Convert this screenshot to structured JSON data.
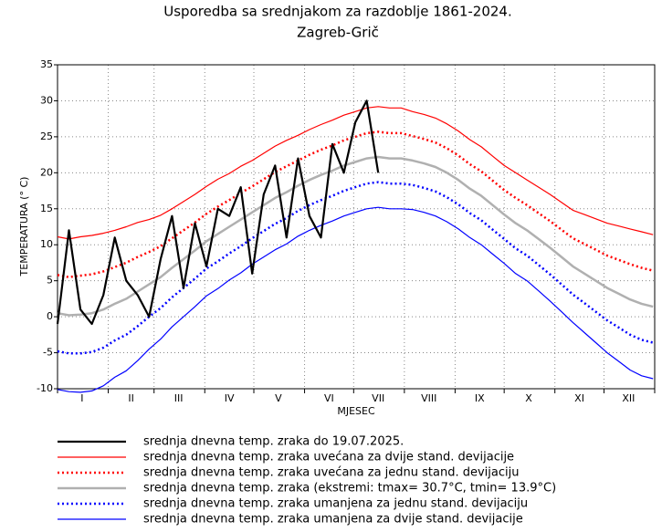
{
  "chart_data": {
    "type": "line",
    "title": "Usporedba sa srednjakom za razdoblje 1861-2024.",
    "subtitle": "Zagreb-Grič",
    "xlabel": "MJESEC",
    "ylabel": "TEMPERATURA (° C)",
    "xlim": [
      1,
      366
    ],
    "ylim": [
      -10,
      35
    ],
    "yticks": [
      -10,
      -5,
      0,
      5,
      10,
      15,
      20,
      25,
      30,
      35
    ],
    "xticks": [
      {
        "value": 16,
        "label": "I"
      },
      {
        "value": 46,
        "label": "II"
      },
      {
        "value": 75,
        "label": "III"
      },
      {
        "value": 106,
        "label": "IV"
      },
      {
        "value": 136,
        "label": "V"
      },
      {
        "value": 167,
        "label": "VI"
      },
      {
        "value": 197,
        "label": "VII"
      },
      {
        "value": 228,
        "label": "VIII"
      },
      {
        "value": 259,
        "label": "IX"
      },
      {
        "value": 289,
        "label": "X"
      },
      {
        "value": 320,
        "label": "XI"
      },
      {
        "value": 350,
        "label": "XII"
      }
    ],
    "x_grid": [
      1,
      32,
      60,
      91,
      121,
      152,
      182,
      213,
      244,
      274,
      305,
      335,
      366
    ],
    "grid": true,
    "x": [
      1,
      8,
      15,
      22,
      29,
      36,
      43,
      50,
      57,
      64,
      71,
      78,
      85,
      92,
      99,
      106,
      113,
      120,
      127,
      134,
      141,
      148,
      155,
      162,
      169,
      176,
      183,
      190,
      197,
      204,
      211,
      218,
      225,
      232,
      239,
      246,
      253,
      260,
      267,
      274,
      281,
      288,
      295,
      302,
      309,
      316,
      323,
      330,
      337,
      344,
      351,
      358,
      365
    ],
    "series": [
      {
        "name": "srednja dnevna temp. zraka do 19.07.2025.",
        "color": "#000000",
        "linestyle": "solid",
        "linewidth": 2.2,
        "values": [
          -1,
          12,
          1,
          -1,
          3,
          11,
          5,
          3,
          0,
          8,
          14,
          4,
          13,
          7,
          15,
          14,
          18,
          6,
          17,
          21,
          11,
          22,
          14,
          11,
          24,
          20,
          27,
          30,
          20,
          null,
          null,
          null,
          null,
          null,
          null,
          null,
          null,
          null,
          null,
          null,
          null,
          null,
          null,
          null,
          null,
          null,
          null,
          null,
          null,
          null,
          null,
          null,
          null
        ]
      },
      {
        "name": "srednja dnevna temp. zraka uvećana za dvije stand. devijacije",
        "color": "#ff0000",
        "linestyle": "solid",
        "linewidth": 1.2,
        "values": [
          11.1,
          10.8,
          11.1,
          11.3,
          11.6,
          12.0,
          12.5,
          13.1,
          13.5,
          14.1,
          15.0,
          16.0,
          17.0,
          18.1,
          19.1,
          19.9,
          20.9,
          21.7,
          22.7,
          23.7,
          24.5,
          25.2,
          26.0,
          26.7,
          27.3,
          28.0,
          28.5,
          29.0,
          29.2,
          29.0,
          29.0,
          28.5,
          28.1,
          27.6,
          26.8,
          25.8,
          24.6,
          23.6,
          22.3,
          21.0,
          20.0,
          19.0,
          18.0,
          17.0,
          15.9,
          14.8,
          14.2,
          13.6,
          13.0,
          12.6,
          12.2,
          11.8,
          11.4
        ]
      },
      {
        "name": "srednja dnevna temp. zraka uvećana za jednu stand. devijaciju",
        "color": "#ff0000",
        "linestyle": "dotted",
        "linewidth": 2.5,
        "values": [
          5.8,
          5.5,
          5.7,
          5.9,
          6.3,
          6.9,
          7.5,
          8.3,
          9.0,
          9.8,
          10.9,
          12.0,
          13.1,
          14.3,
          15.3,
          16.2,
          17.2,
          18.1,
          19.1,
          20.1,
          20.9,
          21.7,
          22.5,
          23.2,
          23.8,
          24.5,
          25.0,
          25.5,
          25.7,
          25.5,
          25.5,
          25.1,
          24.7,
          24.2,
          23.4,
          22.4,
          21.2,
          20.2,
          18.9,
          17.6,
          16.5,
          15.5,
          14.4,
          13.3,
          12.1,
          10.9,
          10.1,
          9.3,
          8.5,
          7.9,
          7.3,
          6.8,
          6.4
        ]
      },
      {
        "name": "srednja dnevna temp. zraka (ekstremi: tmax= 30.7°C, tmin= 13.9°C)",
        "color": "#b0b0b0",
        "linestyle": "solid",
        "linewidth": 2.5,
        "values": [
          0.5,
          0.2,
          0.3,
          0.5,
          1.0,
          1.8,
          2.5,
          3.5,
          4.5,
          5.5,
          6.8,
          8.0,
          9.2,
          10.5,
          11.5,
          12.5,
          13.5,
          14.5,
          15.5,
          16.5,
          17.3,
          18.2,
          19.0,
          19.7,
          20.3,
          21.0,
          21.5,
          22.0,
          22.2,
          22.0,
          22.0,
          21.7,
          21.3,
          20.8,
          20.0,
          19.0,
          17.8,
          16.8,
          15.5,
          14.2,
          13.0,
          12.0,
          10.8,
          9.6,
          8.3,
          7.0,
          6.0,
          5.0,
          4.0,
          3.2,
          2.4,
          1.8,
          1.4
        ]
      },
      {
        "name": "srednja dnevna temp. zraka umanjena za jednu stand. devijaciju",
        "color": "#0000ff",
        "linestyle": "dotted",
        "linewidth": 2.5,
        "values": [
          -4.8,
          -5.1,
          -5.1,
          -4.9,
          -4.3,
          -3.3,
          -2.5,
          -1.3,
          0.0,
          1.2,
          2.7,
          4.0,
          5.3,
          6.7,
          7.7,
          8.8,
          9.8,
          10.9,
          11.9,
          12.9,
          13.7,
          14.7,
          15.5,
          16.2,
          16.8,
          17.5,
          18.0,
          18.5,
          18.7,
          18.5,
          18.5,
          18.3,
          17.9,
          17.4,
          16.6,
          15.6,
          14.4,
          13.4,
          12.1,
          10.8,
          9.5,
          8.5,
          7.2,
          5.9,
          4.5,
          3.1,
          1.9,
          0.7,
          -0.5,
          -1.5,
          -2.5,
          -3.2,
          -3.6
        ]
      },
      {
        "name": "srednja dnevna temp. zraka umanjena za dvije stand. devijacije",
        "color": "#0000ff",
        "linestyle": "solid",
        "linewidth": 1.2,
        "values": [
          -10.1,
          -10.4,
          -10.5,
          -10.3,
          -9.6,
          -8.4,
          -7.5,
          -6.1,
          -4.5,
          -3.1,
          -1.4,
          0.0,
          1.4,
          2.9,
          3.9,
          5.1,
          6.1,
          7.3,
          8.3,
          9.3,
          10.1,
          11.2,
          12.0,
          12.7,
          13.3,
          14.0,
          14.5,
          15.0,
          15.2,
          15.0,
          15.0,
          14.9,
          14.5,
          14.0,
          13.2,
          12.2,
          11.0,
          10.0,
          8.7,
          7.4,
          6.0,
          5.0,
          3.6,
          2.2,
          0.7,
          -0.8,
          -2.2,
          -3.6,
          -5.0,
          -6.2,
          -7.4,
          -8.2,
          -8.6
        ]
      }
    ]
  }
}
